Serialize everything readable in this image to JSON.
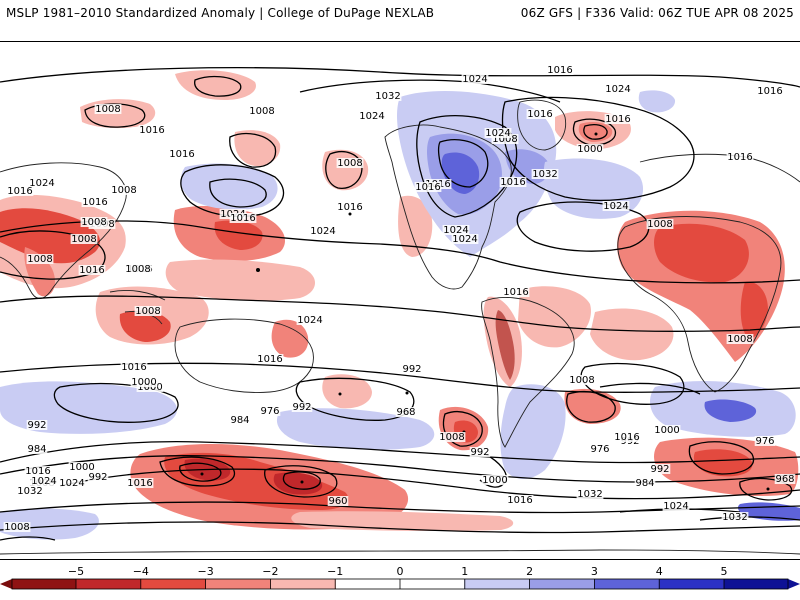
{
  "header": {
    "title": "MSLP 1981–2010 Standardized Anomaly | College of DuPage NEXLAB",
    "run_info": "06Z GFS | F336 Valid: 06Z TUE APR 08 2025"
  },
  "colors": {
    "anom_neg_strong": "#7a0d0d",
    "anom_neg_4": "#c0282b",
    "anom_neg_3": "#e34a3f",
    "anom_neg_2": "#f1837a",
    "anom_neg_1": "#f8b8b1",
    "anom_pos_1": "#c9ccf3",
    "anom_pos_2": "#9a9ee8",
    "anom_pos_3": "#5e63d9",
    "anom_pos_4": "#2c31c4",
    "anom_pos_strong": "#0e1295"
  },
  "isobar_labels": [
    "1016",
    "1024",
    "1016",
    "1032",
    "1024",
    "1016",
    "1016",
    "1008",
    "1008",
    "1016",
    "1024",
    "1008",
    "1016",
    "1024",
    "1016",
    "1024",
    "1016",
    "1032",
    "1000",
    "1016",
    "1008",
    "1024",
    "1016",
    "1008",
    "1016",
    "1008",
    "1024",
    "1008",
    "1016",
    "1024",
    "1008",
    "1016",
    "1008",
    "1008",
    "1016",
    "1024",
    "1016",
    "1024",
    "1016",
    "1016",
    "1008",
    "1008",
    "1024",
    "992",
    "1016",
    "1008",
    "1000",
    "992",
    "984",
    "968",
    "1016",
    "1000",
    "992",
    "984",
    "976",
    "960",
    "992",
    "1008",
    "1000",
    "1016",
    "1032",
    "992",
    "1000",
    "1016",
    "976",
    "992",
    "984",
    "968",
    "1024",
    "1032",
    "1008",
    "1016",
    "1024",
    "992",
    "1000",
    "1008",
    "1016",
    "1024",
    "1032",
    "976",
    "1008"
  ],
  "colorbar": {
    "ticks": [
      "−5",
      "−4",
      "−3",
      "−2",
      "−1",
      "0",
      "1",
      "2",
      "3",
      "4",
      "5"
    ]
  }
}
